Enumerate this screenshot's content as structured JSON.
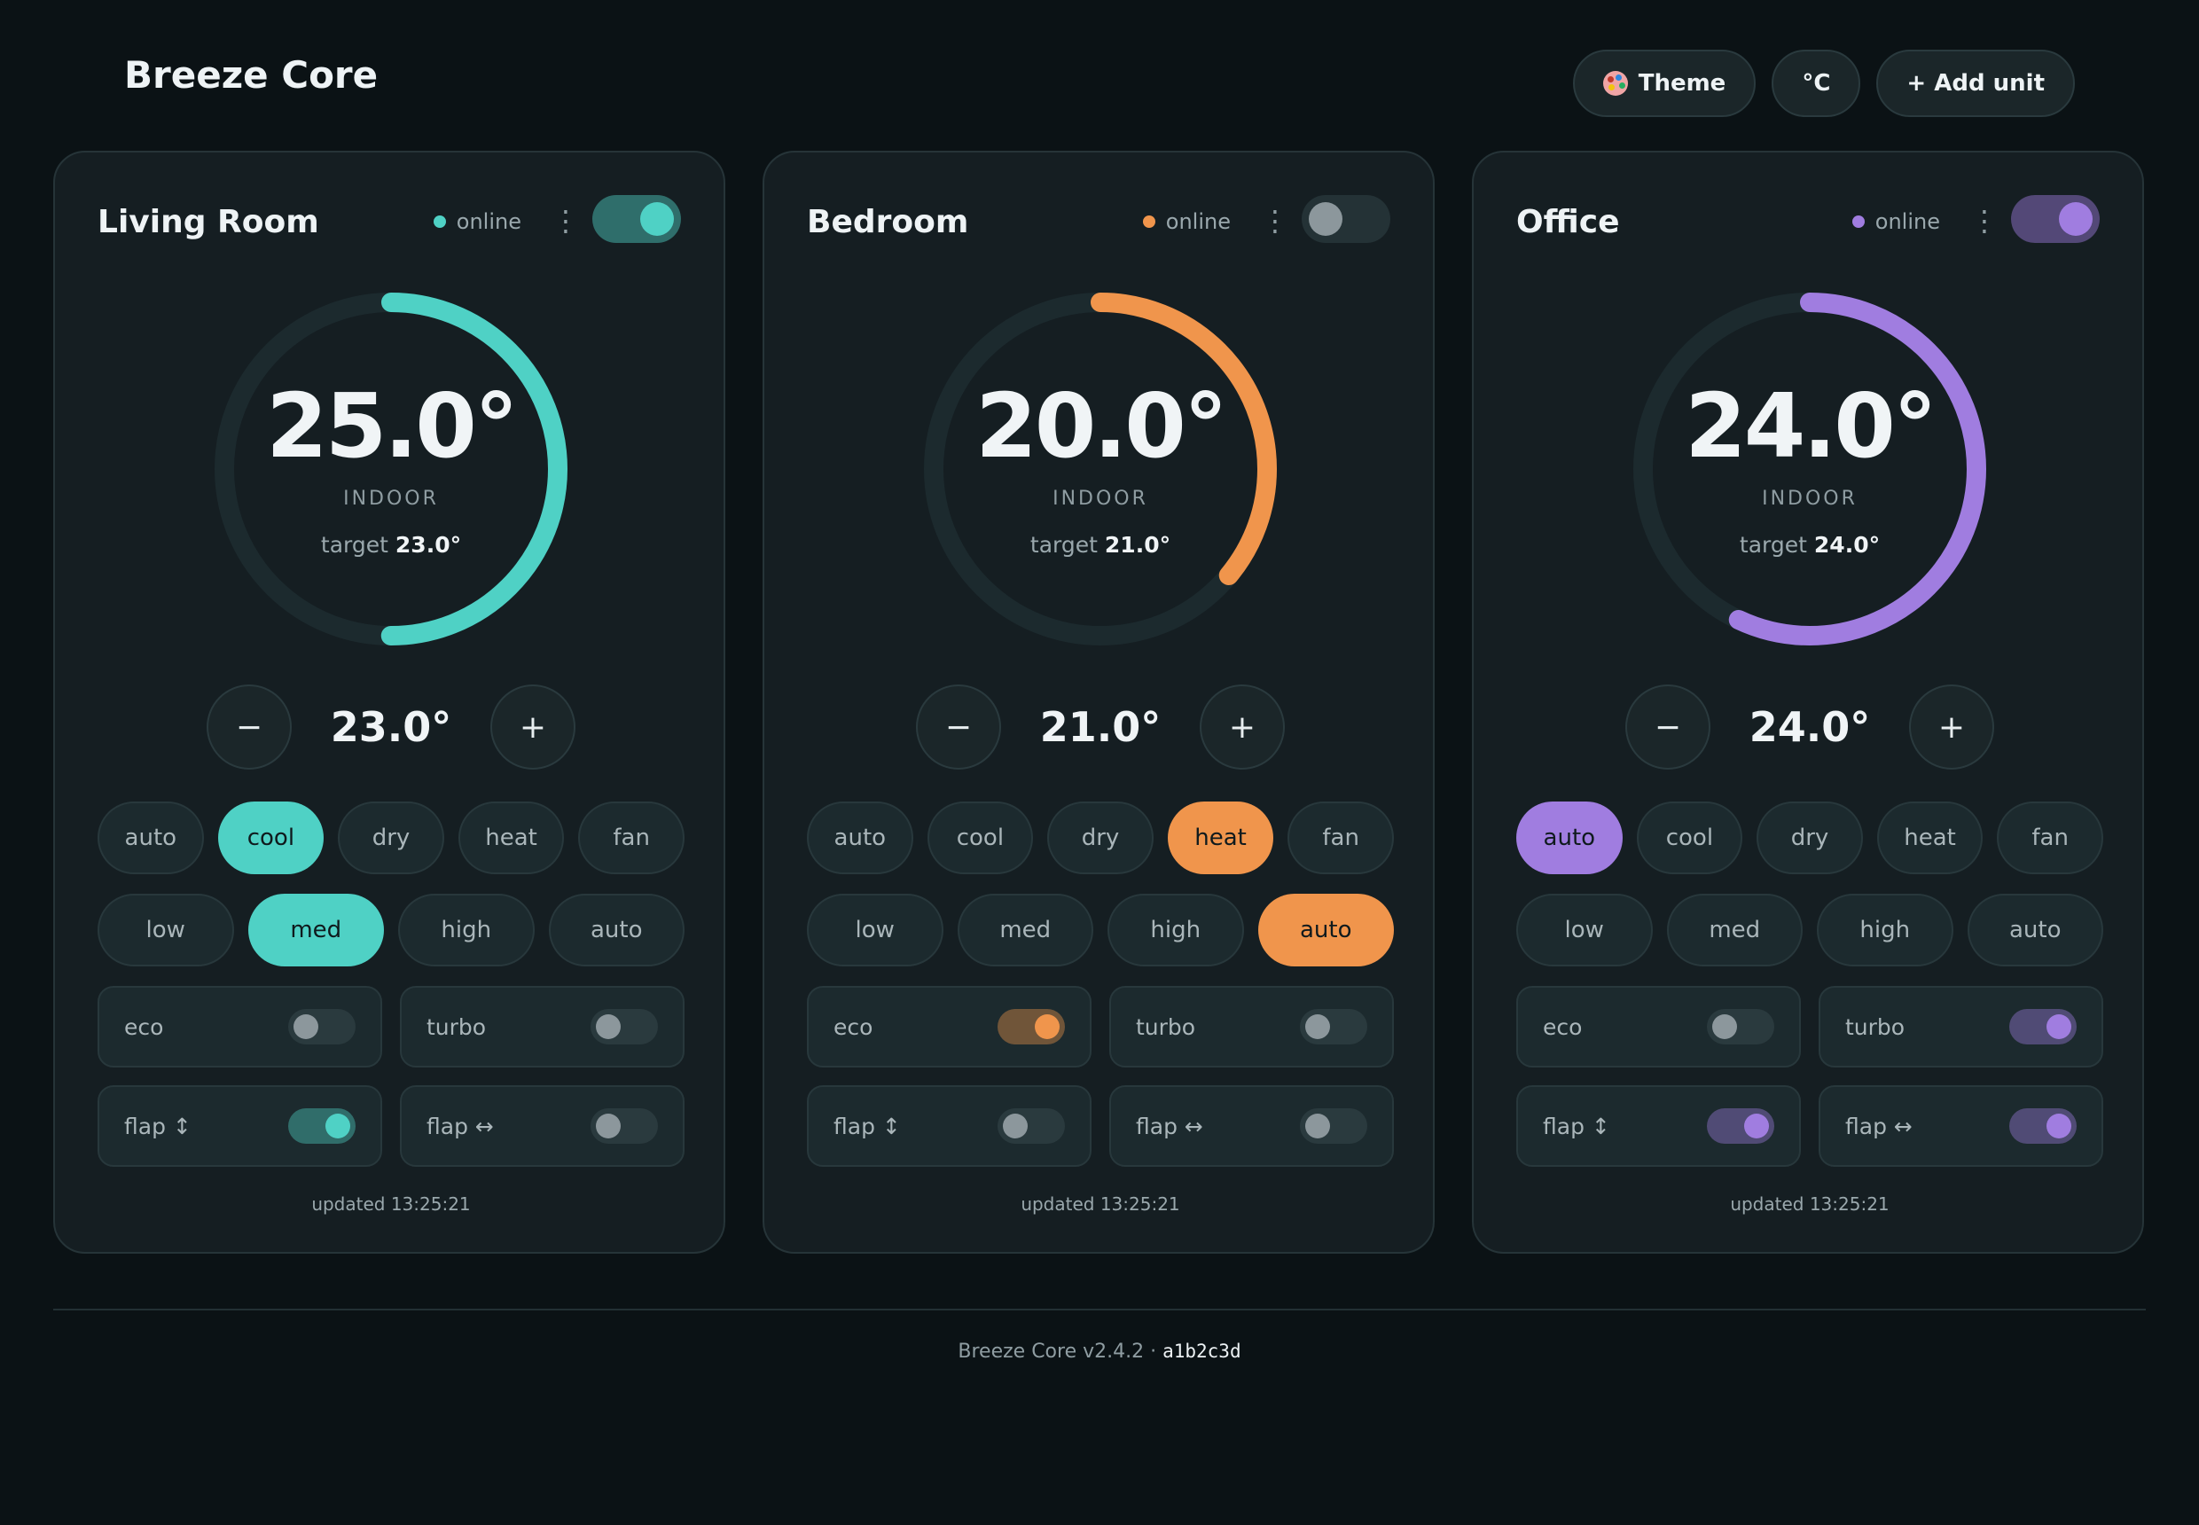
{
  "header": {
    "title": "Breeze Core",
    "buttons": {
      "theme": "Theme",
      "unit": "°C",
      "add": "+ Add unit"
    },
    "icons": {
      "theme": "palette-icon"
    }
  },
  "units": [
    {
      "name": "Living Room",
      "status": "online",
      "power_on": true,
      "accent": "#4fd1c5",
      "temp": "25.0°",
      "indoor_label": "INDOOR",
      "target_label": "target",
      "target": "23.0°",
      "setpoint": "23.0°",
      "dial_fraction": 0.5,
      "modes": [
        "auto",
        "cool",
        "dry",
        "heat",
        "fan"
      ],
      "active_mode": "cool",
      "fans": [
        "low",
        "med",
        "high",
        "auto"
      ],
      "active_fan": "med",
      "toggles": [
        {
          "label": "eco",
          "on": false
        },
        {
          "label": "turbo",
          "on": false
        },
        {
          "label": "flap ↕",
          "on": true
        },
        {
          "label": "flap ↔",
          "on": false
        }
      ],
      "updated": "updated 13:25:21"
    },
    {
      "name": "Bedroom",
      "status": "online",
      "power_on": false,
      "accent": "#f0954c",
      "temp": "20.0°",
      "indoor_label": "INDOOR",
      "target_label": "target",
      "target": "21.0°",
      "setpoint": "21.0°",
      "dial_fraction": 0.36,
      "modes": [
        "auto",
        "cool",
        "dry",
        "heat",
        "fan"
      ],
      "active_mode": "heat",
      "fans": [
        "low",
        "med",
        "high",
        "auto"
      ],
      "active_fan": "auto",
      "toggles": [
        {
          "label": "eco",
          "on": true
        },
        {
          "label": "turbo",
          "on": false
        },
        {
          "label": "flap ↕",
          "on": false
        },
        {
          "label": "flap ↔",
          "on": false
        }
      ],
      "updated": "updated 13:25:21"
    },
    {
      "name": "Office",
      "status": "online",
      "power_on": true,
      "accent": "#a07de0",
      "temp": "24.0°",
      "indoor_label": "INDOOR",
      "target_label": "target",
      "target": "24.0°",
      "setpoint": "24.0°",
      "dial_fraction": 0.57,
      "modes": [
        "auto",
        "cool",
        "dry",
        "heat",
        "fan"
      ],
      "active_mode": "auto",
      "fans": [
        "low",
        "med",
        "high",
        "auto"
      ],
      "active_fan": null,
      "toggles": [
        {
          "label": "eco",
          "on": false
        },
        {
          "label": "turbo",
          "on": true
        },
        {
          "label": "flap ↕",
          "on": true
        },
        {
          "label": "flap ↔",
          "on": true
        }
      ],
      "updated": "updated 13:25:21"
    }
  ],
  "footer": {
    "text": "Breeze Core v2.4.2 · ",
    "hash": "a1b2c3d"
  }
}
